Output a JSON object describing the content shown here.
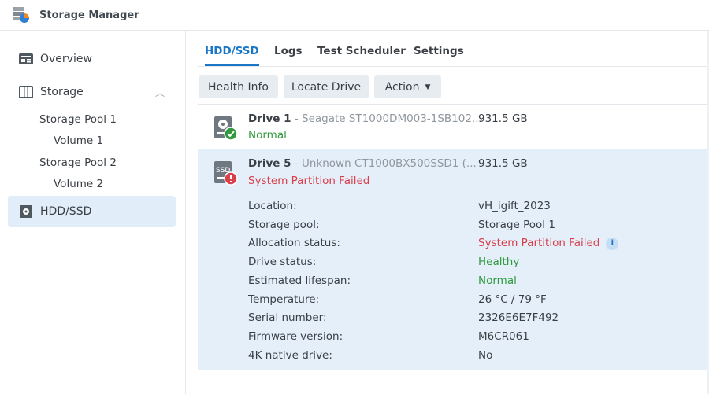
{
  "app": {
    "title": "Storage Manager",
    "icon": "storage-manager-icon"
  },
  "sidebar": {
    "items": [
      {
        "label": "Overview",
        "icon": "overview-icon"
      },
      {
        "label": "Storage",
        "icon": "storage-icon",
        "expanded": true
      },
      {
        "label": "Storage Pool 1"
      },
      {
        "label": "Volume 1"
      },
      {
        "label": "Storage Pool 2"
      },
      {
        "label": "Volume 2"
      },
      {
        "label": "HDD/SSD",
        "icon": "hdd-icon",
        "selected": true
      }
    ]
  },
  "tabs": [
    {
      "label": "HDD/SSD",
      "active": true
    },
    {
      "label": "Logs"
    },
    {
      "label": "Test Scheduler"
    },
    {
      "label": "Settings"
    }
  ],
  "toolbar": {
    "health_info": "Health Info",
    "locate_drive": "Locate Drive",
    "action": "Action"
  },
  "drives": [
    {
      "name": "Drive 1",
      "model": " - Seagate ST1000DM003-1SB102...",
      "size": "931.5 GB",
      "status": "Normal",
      "type": "HDD"
    },
    {
      "name": "Drive 5",
      "model": " - Unknown CT1000BX500SSD1 (...",
      "size": "931.5 GB",
      "status": "System Partition Failed",
      "type": "SSD",
      "badge": "SSD"
    }
  ],
  "details": [
    {
      "label": "Location:",
      "value": "vH_igift_2023"
    },
    {
      "label": "Storage pool:",
      "value": "Storage Pool 1"
    },
    {
      "label": "Allocation status:",
      "value": "System Partition Failed",
      "tone": "bad",
      "info": "i"
    },
    {
      "label": "Drive status:",
      "value": "Healthy",
      "tone": "ok"
    },
    {
      "label": "Estimated lifespan:",
      "value": "Normal",
      "tone": "ok"
    },
    {
      "label": "Temperature:",
      "value": "26 °C / 79 °F"
    },
    {
      "label": "Serial number:",
      "value": "2326E6E7F492"
    },
    {
      "label": "Firmware version:",
      "value": "M6CR061"
    },
    {
      "label": "4K native drive:",
      "value": "No"
    }
  ],
  "colors": {
    "accent": "#1a76c6",
    "ok": "#2f9a3c",
    "error": "#d8404b",
    "selected": "#e4effa"
  }
}
